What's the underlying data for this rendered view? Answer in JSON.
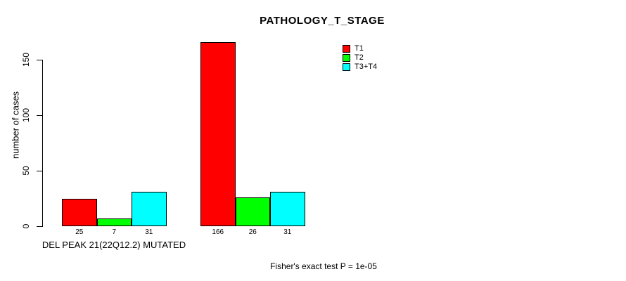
{
  "chart_data": {
    "type": "bar",
    "title": "PATHOLOGY_T_STAGE",
    "ylabel": "number of cases",
    "xlabel": "",
    "yticks": [
      0,
      50,
      100,
      150
    ],
    "ylim": [
      0,
      166
    ],
    "grid": false,
    "legend_position": "top-right",
    "categories": [
      "DEL PEAK 21(22Q12.2) MUTATED",
      ""
    ],
    "series": [
      {
        "name": "T1",
        "color": "#ff0000",
        "values": [
          25,
          166
        ]
      },
      {
        "name": "T2",
        "color": "#00ff00",
        "values": [
          7,
          26
        ]
      },
      {
        "name": "T3+T4",
        "color": "#00ffff",
        "values": [
          31,
          31
        ]
      }
    ],
    "bar_labels": [
      [
        "25",
        "7",
        "31"
      ],
      [
        "166",
        "26",
        "31"
      ]
    ],
    "footnote": "Fisher's exact test P = 1e-05",
    "colors": {
      "background": "#ffffff",
      "axis": "#000000",
      "bar_border": "#000000",
      "text": "#000000"
    }
  }
}
